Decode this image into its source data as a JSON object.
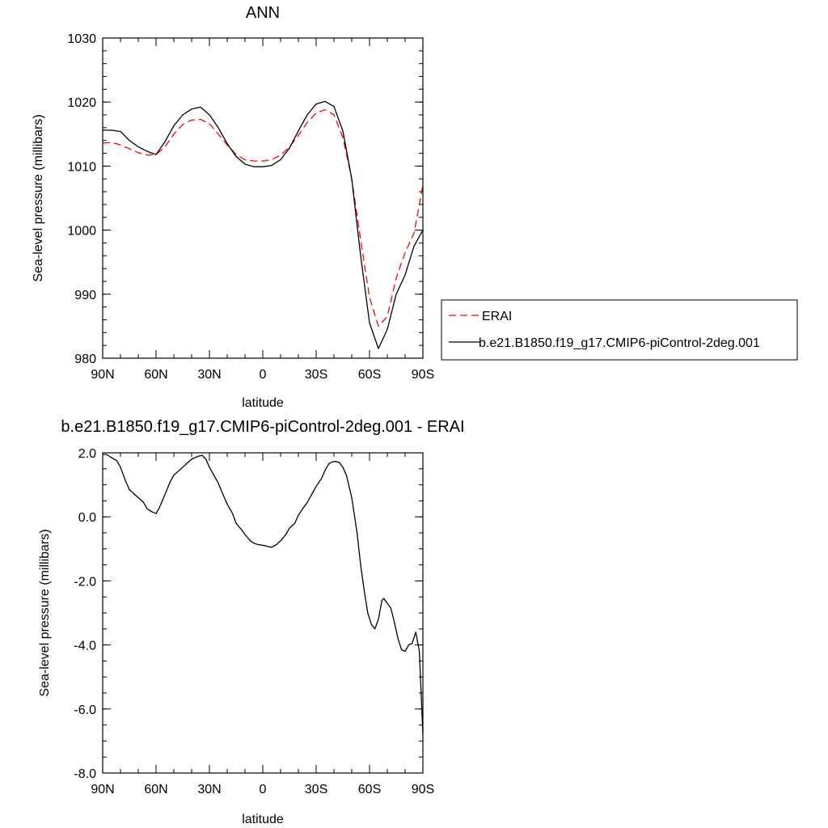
{
  "chart_data": [
    {
      "type": "line",
      "title": "ANN",
      "xlabel": "latitude",
      "ylabel": "Sea-level pressure (millibars)",
      "xlim": [
        90,
        -90
      ],
      "ylim": [
        980,
        1030
      ],
      "x_tick_values": [
        90,
        60,
        30,
        0,
        -30,
        -60,
        -90
      ],
      "x_tick_labels": [
        "90N",
        "60N",
        "30N",
        "0",
        "30S",
        "60S",
        "90S"
      ],
      "y_tick_values": [
        980,
        990,
        1000,
        1010,
        1020,
        1030
      ],
      "y_tick_labels": [
        "980",
        "990",
        "1000",
        "1010",
        "1020",
        "1030"
      ],
      "grid": false,
      "legend_position": "right",
      "series": [
        {
          "name": "ERAI",
          "color": "#ff0000",
          "dashed": true,
          "x": [
            90,
            85,
            80,
            75,
            70,
            65,
            60,
            55,
            50,
            45,
            40,
            35,
            30,
            25,
            20,
            15,
            10,
            5,
            0,
            -5,
            -10,
            -15,
            -20,
            -25,
            -30,
            -35,
            -40,
            -45,
            -50,
            -55,
            -60,
            -65,
            -70,
            -75,
            -80,
            -85,
            -90
          ],
          "values": [
            1013.6,
            1013.7,
            1013.3,
            1012.7,
            1012.1,
            1011.7,
            1011.8,
            1013.0,
            1015.0,
            1016.5,
            1017.2,
            1017.3,
            1016.6,
            1015.0,
            1013.3,
            1011.8,
            1011.0,
            1010.8,
            1010.8,
            1011.0,
            1011.7,
            1013.0,
            1014.8,
            1016.8,
            1018.3,
            1018.8,
            1018.0,
            1014.5,
            1008.0,
            998.5,
            989.5,
            985.0,
            986.5,
            992.5,
            996.5,
            999.5,
            1007.0
          ]
        },
        {
          "name": "b.e21.B1850.f19_g17.CMIP6-piControl-2deg.001",
          "color": "#000000",
          "dashed": false,
          "x": [
            90,
            85,
            80,
            75,
            70,
            65,
            60,
            55,
            50,
            45,
            40,
            35,
            30,
            25,
            20,
            15,
            10,
            5,
            0,
            -5,
            -10,
            -15,
            -20,
            -25,
            -30,
            -35,
            -40,
            -45,
            -50,
            -55,
            -60,
            -65,
            -70,
            -75,
            -80,
            -85,
            -90
          ],
          "values": [
            1015.6,
            1015.6,
            1015.4,
            1014.0,
            1013.0,
            1012.3,
            1011.8,
            1013.8,
            1016.3,
            1018.0,
            1018.9,
            1019.2,
            1018.0,
            1016.0,
            1013.5,
            1011.5,
            1010.3,
            1009.9,
            1009.9,
            1010.1,
            1011.0,
            1012.8,
            1015.5,
            1018.0,
            1019.7,
            1020.1,
            1019.3,
            1015.5,
            1008.0,
            996.0,
            985.5,
            981.5,
            984.5,
            990.0,
            993.0,
            997.5,
            1000.0
          ]
        }
      ]
    },
    {
      "type": "line",
      "title": "b.e21.B1850.f19_g17.CMIP6-piControl-2deg.001 - ERAI",
      "xlabel": "latitude",
      "ylabel": "Sea-level pressure (millibars)",
      "xlim": [
        90,
        -90
      ],
      "ylim": [
        -8,
        2
      ],
      "x_tick_values": [
        90,
        60,
        30,
        0,
        -30,
        -60,
        -90
      ],
      "x_tick_labels": [
        "90N",
        "60N",
        "30N",
        "0",
        "30S",
        "60S",
        "90S"
      ],
      "y_tick_values": [
        2,
        0,
        -2,
        -4,
        -6,
        -8
      ],
      "y_tick_labels": [
        "2.0",
        "0.0",
        "-2.0",
        "-4.0",
        "-6.0",
        "-8.0"
      ],
      "grid": false,
      "series": [
        {
          "color": "#000000",
          "dashed": false,
          "x": [
            90,
            88,
            85,
            82,
            80,
            77,
            75,
            72,
            70,
            67,
            65,
            62,
            60,
            58,
            55,
            52,
            50,
            47,
            45,
            42,
            40,
            38,
            36,
            34,
            32,
            30,
            28,
            25,
            22,
            20,
            17,
            15,
            12,
            10,
            7,
            5,
            3,
            1,
            -1,
            -3,
            -5,
            -8,
            -10,
            -13,
            -15,
            -18,
            -20,
            -23,
            -25,
            -28,
            -30,
            -33,
            -35,
            -37,
            -39,
            -41,
            -43,
            -45,
            -47,
            -50,
            -53,
            -55,
            -57,
            -59,
            -61,
            -63,
            -65,
            -67,
            -68,
            -70,
            -72,
            -74,
            -76,
            -78,
            -80,
            -82,
            -84,
            -86,
            -88,
            -90
          ],
          "values": [
            1.95,
            1.95,
            1.85,
            1.75,
            1.55,
            1.1,
            0.85,
            0.7,
            0.6,
            0.45,
            0.25,
            0.15,
            0.1,
            0.3,
            0.7,
            1.1,
            1.3,
            1.45,
            1.55,
            1.7,
            1.8,
            1.85,
            1.9,
            1.92,
            1.8,
            1.55,
            1.35,
            1.05,
            0.65,
            0.4,
            0.1,
            -0.2,
            -0.4,
            -0.55,
            -0.75,
            -0.82,
            -0.86,
            -0.88,
            -0.9,
            -0.93,
            -0.95,
            -0.85,
            -0.75,
            -0.55,
            -0.35,
            -0.2,
            0.05,
            0.3,
            0.45,
            0.75,
            0.95,
            1.2,
            1.45,
            1.65,
            1.72,
            1.73,
            1.7,
            1.55,
            1.3,
            0.6,
            -0.5,
            -1.5,
            -2.3,
            -3.0,
            -3.35,
            -3.5,
            -3.2,
            -2.6,
            -2.55,
            -2.7,
            -2.85,
            -3.3,
            -3.8,
            -4.15,
            -4.2,
            -4.0,
            -3.95,
            -3.6,
            -4.2,
            -6.8
          ]
        }
      ]
    }
  ]
}
